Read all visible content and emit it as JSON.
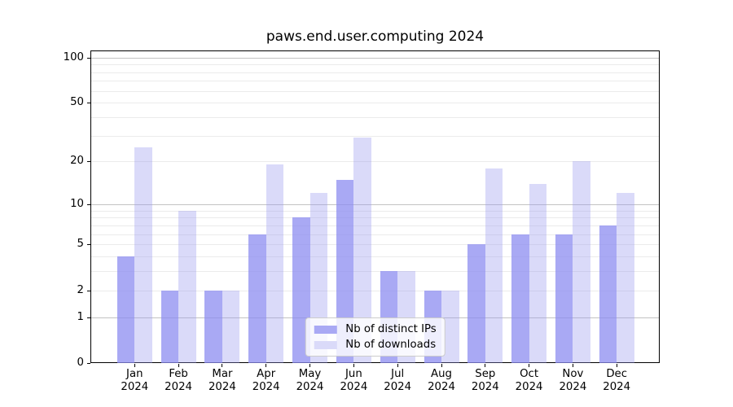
{
  "chart_data": {
    "type": "bar",
    "title": "paws.end.user.computing 2024",
    "categories": [
      "Jan",
      "Feb",
      "Mar",
      "Apr",
      "May",
      "Jun",
      "Jul",
      "Aug",
      "Sep",
      "Oct",
      "Nov",
      "Dec"
    ],
    "year": "2024",
    "series": [
      {
        "name": "Nb of distinct IPs",
        "color": "#a9a9f4",
        "fill": "rgba(140,140,240,0.75)",
        "values": [
          4,
          2,
          2,
          6,
          8,
          15,
          3,
          2,
          5,
          6,
          6,
          7
        ]
      },
      {
        "name": "Nb of downloads",
        "color": "#dadaf9",
        "fill": "rgba(150,150,238,0.35)",
        "values": [
          25,
          9,
          2,
          19,
          12,
          29,
          3,
          2,
          18,
          14,
          20,
          12
        ]
      }
    ],
    "xlabel": "",
    "ylabel": "",
    "yscale": "log1p",
    "ylim": [
      0,
      110
    ],
    "y_ticks": [
      0,
      1,
      2,
      5,
      10,
      20,
      50,
      100
    ],
    "y_minor_ticks": [
      3,
      4,
      6,
      7,
      8,
      9,
      30,
      40,
      60,
      70,
      80,
      90
    ],
    "grid": "on",
    "grid_major_color": "#c3c3c3",
    "grid_minor_color": "#ebebeb",
    "legend_position": "lower center"
  }
}
